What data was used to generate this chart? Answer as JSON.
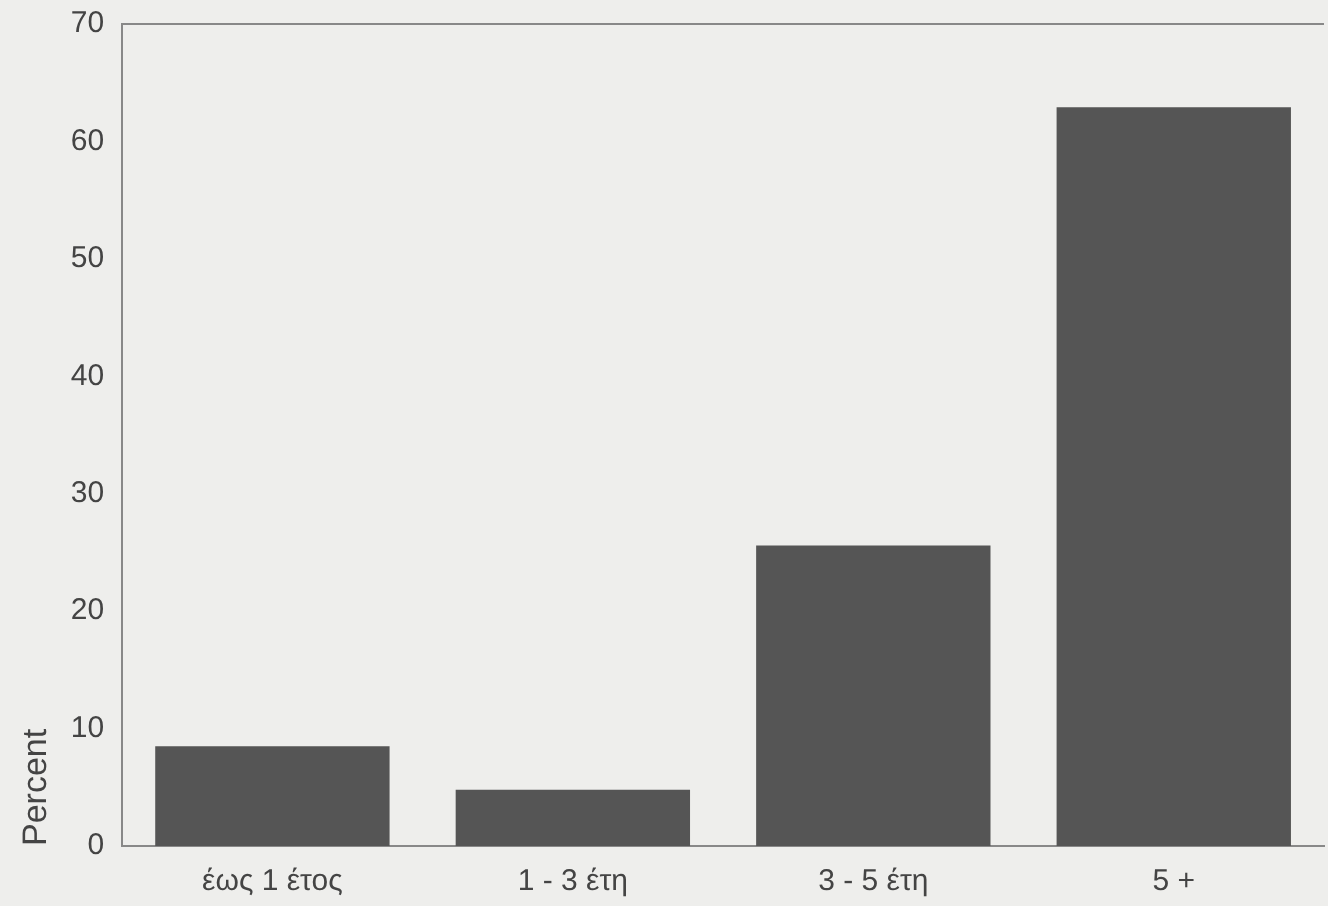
{
  "chart_data": {
    "type": "bar",
    "ylabel": "Percent",
    "categories": [
      "έως 1 έτος",
      "1 - 3 έτη",
      "3 - 5 έτη",
      "5 +"
    ],
    "values": [
      8.5,
      4.8,
      25.6,
      62.9
    ],
    "color": "#555555",
    "ylim": [
      0,
      70
    ],
    "yticks": [
      0,
      10,
      20,
      30,
      40,
      50,
      60,
      70
    ],
    "grid": false,
    "legend": false
  }
}
